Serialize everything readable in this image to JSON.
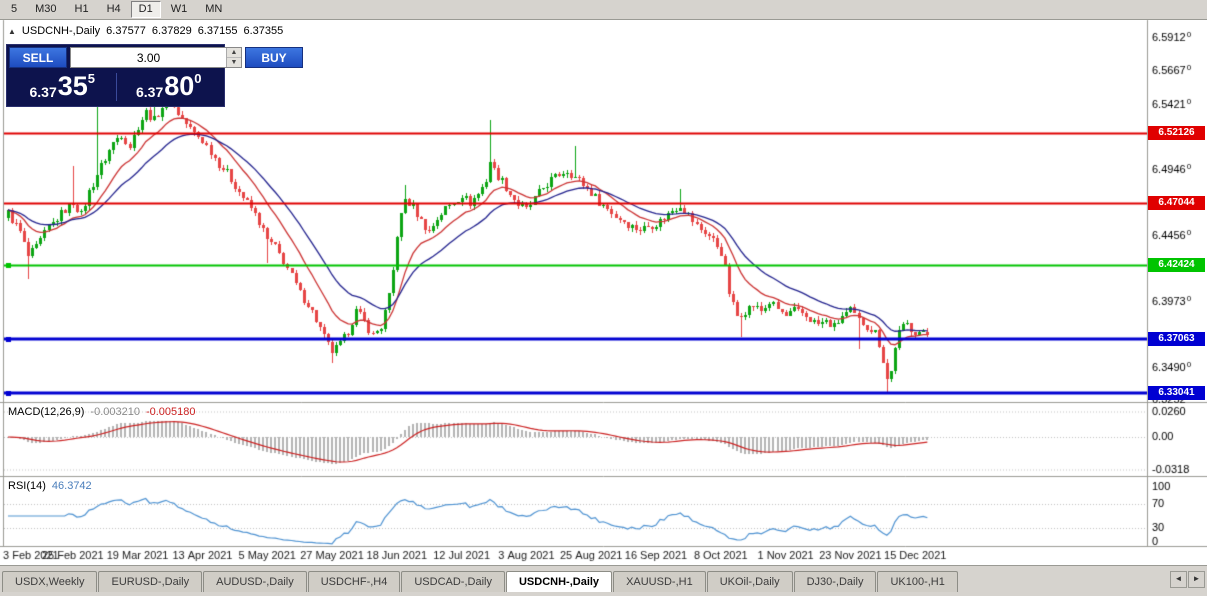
{
  "toolbar": {
    "timeframes": [
      "5",
      "M30",
      "H1",
      "H4",
      "D1",
      "W1",
      "MN"
    ],
    "active": "D1"
  },
  "chart": {
    "symbol_label": "USDCNH-,Daily",
    "ohlc": {
      "open": "6.37577",
      "high": "6.37829",
      "low": "6.37155",
      "close": "6.37355"
    }
  },
  "icons": {
    "collapse": "▲",
    "spin_up": "▲",
    "spin_down": "▼",
    "tab_scroll_left": "◄",
    "tab_scroll_right": "►"
  },
  "trade_panel": {
    "sell_label": "SELL",
    "buy_label": "BUY",
    "volume": "3.00",
    "sell_price": {
      "base": "6.37",
      "big": "35",
      "sup": "5"
    },
    "buy_price": {
      "base": "6.37",
      "big": "80",
      "sup": "0"
    }
  },
  "macd": {
    "label": "MACD(12,26,9)",
    "value_main": "-0.003210",
    "value_signal": "-0.005180",
    "scale_labels": [
      "0.0260",
      "0.00",
      "-0.0318"
    ]
  },
  "rsi": {
    "label": "RSI(14)",
    "value": "46.3742",
    "scale_labels": [
      "100",
      "70",
      "30",
      "0"
    ],
    "levels": [
      70,
      30
    ]
  },
  "price_axis": {
    "labels": [
      [
        "6.59120",
        6.5912
      ],
      [
        "6.56670",
        6.5667
      ],
      [
        "6.54210",
        6.5421
      ],
      [
        "6.49460",
        6.4946
      ],
      [
        "6.44560",
        6.4456
      ],
      [
        "6.39730",
        6.3973
      ],
      [
        "6.34900",
        6.349
      ],
      [
        "6.32520",
        6.3252
      ]
    ],
    "badges": [
      {
        "value": "6.52126",
        "price": 6.52126,
        "color": "#e00000"
      },
      {
        "value": "6.47044",
        "price": 6.47044,
        "color": "#e00000"
      },
      {
        "value": "6.42424",
        "price": 6.42424,
        "color": "#00c400"
      },
      {
        "value": "6.37063",
        "price": 6.37063,
        "color": "#0000d2"
      },
      {
        "value": "6.33041",
        "price": 6.33041,
        "color": "#0000d2"
      }
    ]
  },
  "date_axis": [
    "3 Feb 2021",
    "25 Feb 2021",
    "19 Mar 2021",
    "13 Apr 2021",
    "5 May 2021",
    "27 May 2021",
    "18 Jun 2021",
    "12 Jul 2021",
    "3 Aug 2021",
    "25 Aug 2021",
    "16 Sep 2021",
    "8 Oct 2021",
    "1 Nov 2021",
    "23 Nov 2021",
    "15 Dec 2021"
  ],
  "tabs": {
    "items": [
      "USDX,Weekly",
      "EURUSD-,Daily",
      "AUDUSD-,Daily",
      "USDCHF-,H4",
      "USDCAD-,Daily",
      "USDCNH-,Daily",
      "XAUUSD-,H1",
      "UKOil-,Daily",
      "DJ30-,Daily",
      "UK100-,H1"
    ],
    "active_index": 5
  },
  "colors": {
    "up": "#0ca513",
    "down": "#e64545",
    "ma_fast": "#cc3333",
    "ma_slow": "#24248f",
    "macd_hist": "#b4b4b4",
    "macd_signal": "#cc2222",
    "rsi_line": "#4f93d2",
    "frame": "#9a9a94",
    "grid_dotted": "#c0c0c0"
  },
  "chart_data": {
    "type": "candlestick",
    "symbol": "USDCNH-",
    "timeframe": "Daily",
    "bars_count": 228,
    "bars_per_date_tick": 16,
    "ma_fast": 12,
    "ma_slow": 24,
    "macd_params": [
      12,
      26,
      9
    ],
    "rsi_period": 14,
    "horizontal_lines": [
      {
        "price": 6.52126,
        "color": "#e00000",
        "width": 2,
        "handle": false
      },
      {
        "price": 6.47044,
        "color": "#e00000",
        "width": 2,
        "handle": false
      },
      {
        "price": 6.42424,
        "color": "#00c400",
        "width": 2,
        "handle": true
      },
      {
        "price": 6.37063,
        "color": "#0000d2",
        "width": 3,
        "handle": true
      },
      {
        "price": 6.33041,
        "color": "#0000d2",
        "width": 3,
        "handle": true
      }
    ],
    "close_anchors": [
      [
        0,
        6.463
      ],
      [
        3,
        6.449
      ],
      [
        5,
        6.431
      ],
      [
        7,
        6.437
      ],
      [
        10,
        6.452
      ],
      [
        13,
        6.462
      ],
      [
        16,
        6.471
      ],
      [
        18,
        6.461
      ],
      [
        20,
        6.478
      ],
      [
        22,
        6.491
      ],
      [
        24,
        6.503
      ],
      [
        26,
        6.514
      ],
      [
        28,
        6.521
      ],
      [
        30,
        6.512
      ],
      [
        32,
        6.527
      ],
      [
        34,
        6.537
      ],
      [
        36,
        6.531
      ],
      [
        38,
        6.541
      ],
      [
        40,
        6.545
      ],
      [
        42,
        6.536
      ],
      [
        44,
        6.528
      ],
      [
        46,
        6.521
      ],
      [
        48,
        6.516
      ],
      [
        50,
        6.508
      ],
      [
        52,
        6.499
      ],
      [
        54,
        6.492
      ],
      [
        56,
        6.483
      ],
      [
        58,
        6.474
      ],
      [
        60,
        6.466
      ],
      [
        62,
        6.456
      ],
      [
        64,
        6.443
      ],
      [
        66,
        6.437
      ],
      [
        68,
        6.428
      ],
      [
        70,
        6.416
      ],
      [
        72,
        6.404
      ],
      [
        74,
        6.396
      ],
      [
        76,
        6.384
      ],
      [
        78,
        6.371
      ],
      [
        80,
        6.361
      ],
      [
        82,
        6.366
      ],
      [
        84,
        6.376
      ],
      [
        86,
        6.391
      ],
      [
        88,
        6.383
      ],
      [
        90,
        6.373
      ],
      [
        92,
        6.379
      ],
      [
        94,
        6.401
      ],
      [
        95,
        6.42
      ],
      [
        96,
        6.447
      ],
      [
        97,
        6.461
      ],
      [
        98,
        6.473
      ],
      [
        100,
        6.467
      ],
      [
        102,
        6.457
      ],
      [
        104,
        6.449
      ],
      [
        106,
        6.459
      ],
      [
        108,
        6.466
      ],
      [
        110,
        6.471
      ],
      [
        112,
        6.476
      ],
      [
        114,
        6.47
      ],
      [
        116,
        6.477
      ],
      [
        118,
        6.487
      ],
      [
        119,
        6.501
      ],
      [
        120,
        6.494
      ],
      [
        122,
        6.486
      ],
      [
        124,
        6.477
      ],
      [
        126,
        6.469
      ],
      [
        128,
        6.465
      ],
      [
        130,
        6.473
      ],
      [
        132,
        6.481
      ],
      [
        134,
        6.487
      ],
      [
        136,
        6.491
      ],
      [
        138,
        6.494
      ],
      [
        140,
        6.489
      ],
      [
        142,
        6.484
      ],
      [
        144,
        6.478
      ],
      [
        146,
        6.471
      ],
      [
        148,
        6.466
      ],
      [
        150,
        6.46
      ],
      [
        152,
        6.457
      ],
      [
        154,
        6.453
      ],
      [
        156,
        6.451
      ],
      [
        158,
        6.453
      ],
      [
        160,
        6.455
      ],
      [
        162,
        6.459
      ],
      [
        164,
        6.465
      ],
      [
        166,
        6.469
      ],
      [
        168,
        6.461
      ],
      [
        170,
        6.453
      ],
      [
        172,
        6.449
      ],
      [
        174,
        6.443
      ],
      [
        176,
        6.434
      ],
      [
        177,
        6.422
      ],
      [
        178,
        6.404
      ],
      [
        179,
        6.395
      ],
      [
        180,
        6.387
      ],
      [
        182,
        6.391
      ],
      [
        184,
        6.395
      ],
      [
        186,
        6.391
      ],
      [
        188,
        6.397
      ],
      [
        190,
        6.392
      ],
      [
        192,
        6.387
      ],
      [
        194,
        6.391
      ],
      [
        196,
        6.389
      ],
      [
        198,
        6.385
      ],
      [
        200,
        6.381
      ],
      [
        202,
        6.383
      ],
      [
        204,
        6.379
      ],
      [
        206,
        6.387
      ],
      [
        208,
        6.391
      ],
      [
        210,
        6.384
      ],
      [
        212,
        6.38
      ],
      [
        214,
        6.375
      ],
      [
        215,
        6.367
      ],
      [
        216,
        6.355
      ],
      [
        217,
        6.341
      ],
      [
        218,
        6.346
      ],
      [
        219,
        6.365
      ],
      [
        220,
        6.375
      ],
      [
        221,
        6.379
      ],
      [
        222,
        6.381
      ],
      [
        223,
        6.378
      ],
      [
        224,
        6.376
      ],
      [
        226,
        6.3745
      ],
      [
        227,
        6.37355
      ]
    ],
    "spikes": [
      {
        "i": 5,
        "low": 6.414
      },
      {
        "i": 16,
        "high": 6.497
      },
      {
        "i": 22,
        "high": 6.543
      },
      {
        "i": 36,
        "high": 6.551
      },
      {
        "i": 40,
        "high": 6.557
      },
      {
        "i": 64,
        "low": 6.426
      },
      {
        "i": 80,
        "low": 6.353
      },
      {
        "i": 98,
        "high": 6.4835
      },
      {
        "i": 119,
        "high": 6.531
      },
      {
        "i": 140,
        "high": 6.512
      },
      {
        "i": 166,
        "high": 6.48
      },
      {
        "i": 181,
        "low": 6.372
      },
      {
        "i": 210,
        "low": 6.363
      },
      {
        "i": 217,
        "low": 6.331
      },
      {
        "i": 227,
        "open": 6.37577,
        "high": 6.37829,
        "low": 6.37155,
        "close": 6.37355
      }
    ]
  }
}
